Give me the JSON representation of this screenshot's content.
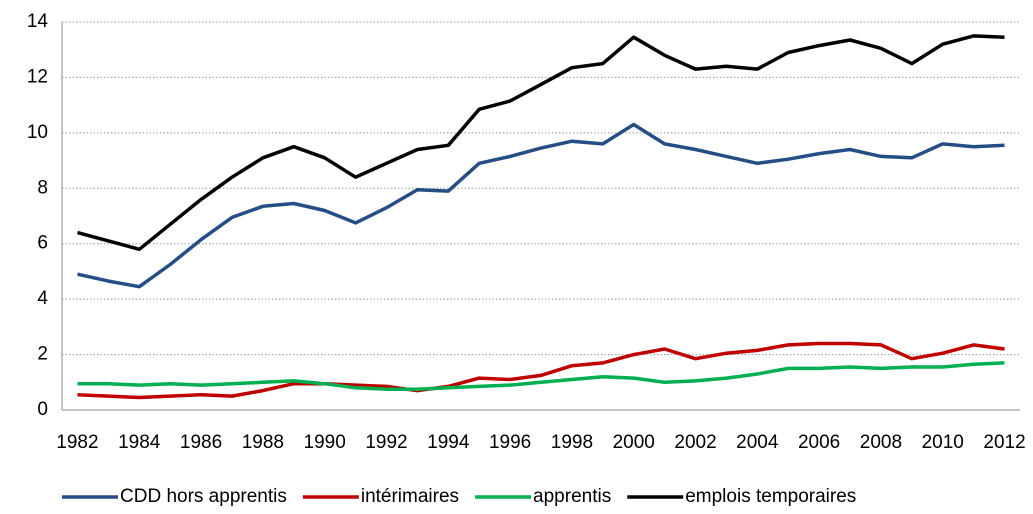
{
  "chart_data": {
    "type": "line",
    "categories": [
      "1982",
      null,
      "1984",
      null,
      "1986",
      null,
      "1988",
      null,
      "1990",
      null,
      "1992",
      null,
      "1994",
      null,
      "1996",
      null,
      "1998",
      null,
      "2000",
      null,
      "2002",
      null,
      "2004",
      null,
      "2006",
      null,
      "2008",
      null,
      "2010",
      null,
      "2012"
    ],
    "series": [
      {
        "name": "CDD hors apprentis",
        "color": "#264e86",
        "values": [
          4.9,
          4.65,
          4.45,
          5.25,
          6.15,
          6.95,
          7.35,
          7.45,
          7.2,
          6.75,
          7.3,
          7.95,
          7.9,
          8.9,
          9.15,
          9.45,
          9.7,
          9.6,
          10.3,
          9.6,
          9.4,
          9.15,
          8.9,
          9.05,
          9.25,
          9.4,
          9.15,
          9.1,
          9.6,
          9.5,
          9.55
        ]
      },
      {
        "name": "intérimaires",
        "color": "#c00000",
        "values": [
          0.55,
          0.5,
          0.45,
          0.5,
          0.55,
          0.5,
          0.7,
          0.95,
          0.95,
          0.9,
          0.85,
          0.7,
          0.85,
          1.15,
          1.1,
          1.25,
          1.6,
          1.7,
          2.0,
          2.2,
          1.85,
          2.05,
          2.15,
          2.35,
          2.4,
          2.4,
          2.35,
          1.85,
          2.05,
          2.35,
          2.2
        ]
      },
      {
        "name": "apprentis",
        "color": "#00b050",
        "values": [
          0.95,
          0.95,
          0.9,
          0.95,
          0.9,
          0.95,
          1.0,
          1.05,
          0.95,
          0.8,
          0.75,
          0.75,
          0.8,
          0.85,
          0.9,
          1.0,
          1.1,
          1.2,
          1.15,
          1.0,
          1.05,
          1.15,
          1.3,
          1.5,
          1.5,
          1.55,
          1.5,
          1.55,
          1.55,
          1.65,
          1.7
        ]
      },
      {
        "name": "emplois temporaires",
        "color": "#000000",
        "values": [
          6.4,
          6.1,
          5.8,
          6.7,
          7.6,
          8.4,
          9.1,
          9.5,
          9.1,
          8.4,
          8.9,
          9.4,
          9.55,
          10.85,
          11.15,
          11.75,
          12.35,
          12.5,
          13.45,
          12.8,
          12.3,
          12.4,
          12.3,
          12.9,
          13.15,
          13.35,
          13.05,
          12.5,
          13.2,
          13.5,
          13.45
        ]
      }
    ],
    "ylim": [
      0,
      14
    ],
    "yticks": [
      0,
      2,
      4,
      6,
      8,
      10,
      12,
      14
    ],
    "grid": true,
    "legend": "bottom"
  }
}
